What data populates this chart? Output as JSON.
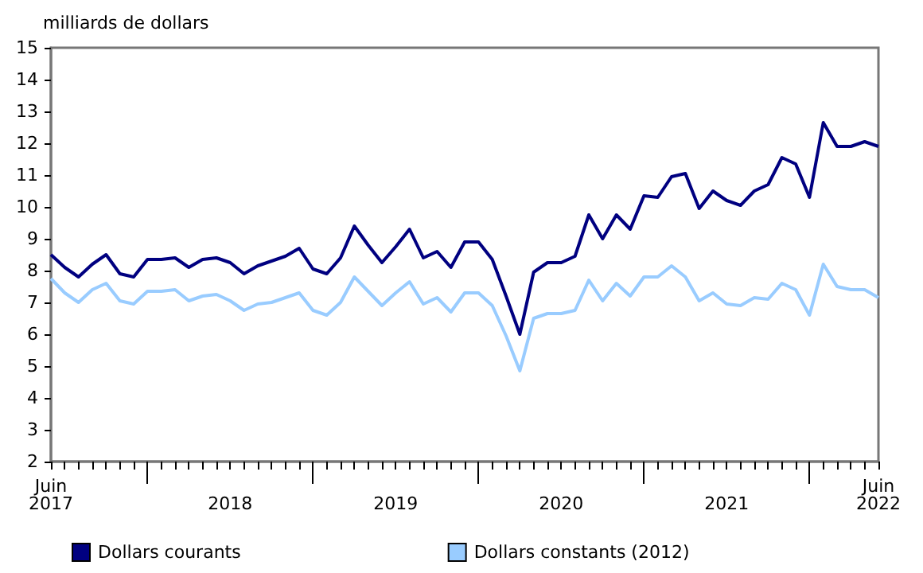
{
  "chart_data": {
    "type": "line",
    "ylabel": "milliards de dollars",
    "categories": [
      "Juin 2017",
      null,
      null,
      null,
      null,
      null,
      null,
      null,
      null,
      null,
      null,
      null,
      null,
      "2018",
      null,
      null,
      null,
      null,
      null,
      null,
      null,
      null,
      null,
      null,
      null,
      "2019",
      null,
      null,
      null,
      null,
      null,
      null,
      null,
      null,
      null,
      null,
      null,
      "2020",
      null,
      null,
      null,
      null,
      null,
      null,
      null,
      null,
      null,
      null,
      null,
      "2021",
      null,
      null,
      null,
      null,
      null,
      null,
      null,
      null,
      null,
      null,
      "Juin 2022"
    ],
    "series": [
      {
        "name": "Dollars courants",
        "color": "#000080",
        "values": [
          8.5,
          8.1,
          7.8,
          8.2,
          8.5,
          7.9,
          7.8,
          8.35,
          8.35,
          8.4,
          8.1,
          8.35,
          8.4,
          8.25,
          7.9,
          8.15,
          8.3,
          8.45,
          8.7,
          8.05,
          7.9,
          8.4,
          9.4,
          8.8,
          8.25,
          8.75,
          9.3,
          8.4,
          8.6,
          8.1,
          8.9,
          8.9,
          8.35,
          7.2,
          6.0,
          7.95,
          8.25,
          8.25,
          8.45,
          9.75,
          9.0,
          9.75,
          9.3,
          10.35,
          10.3,
          10.95,
          11.05,
          9.95,
          10.5,
          10.2,
          10.05,
          10.5,
          10.7,
          11.55,
          11.35,
          10.3,
          12.65,
          11.9,
          11.9,
          12.05,
          11.9
        ]
      },
      {
        "name": "Dollars constants (2012)",
        "color": "#99ccff",
        "values": [
          7.75,
          7.3,
          7.0,
          7.4,
          7.6,
          7.05,
          6.95,
          7.35,
          7.35,
          7.4,
          7.05,
          7.2,
          7.25,
          7.05,
          6.75,
          6.95,
          7.0,
          7.15,
          7.3,
          6.75,
          6.6,
          7.0,
          7.8,
          7.35,
          6.9,
          7.3,
          7.65,
          6.95,
          7.15,
          6.7,
          7.3,
          7.3,
          6.9,
          5.95,
          4.85,
          6.5,
          6.65,
          6.65,
          6.75,
          7.7,
          7.05,
          7.6,
          7.2,
          7.8,
          7.8,
          8.15,
          7.8,
          7.05,
          7.3,
          6.95,
          6.9,
          7.15,
          7.1,
          7.6,
          7.4,
          6.6,
          8.2,
          7.5,
          7.4,
          7.4,
          7.15
        ]
      }
    ],
    "ylim": [
      2,
      15
    ],
    "yticks": [
      2,
      3,
      4,
      5,
      6,
      7,
      8,
      9,
      10,
      11,
      12,
      13,
      14,
      15
    ],
    "grid": false,
    "legend": "bottom",
    "marker": "none",
    "line_style": "solid"
  }
}
